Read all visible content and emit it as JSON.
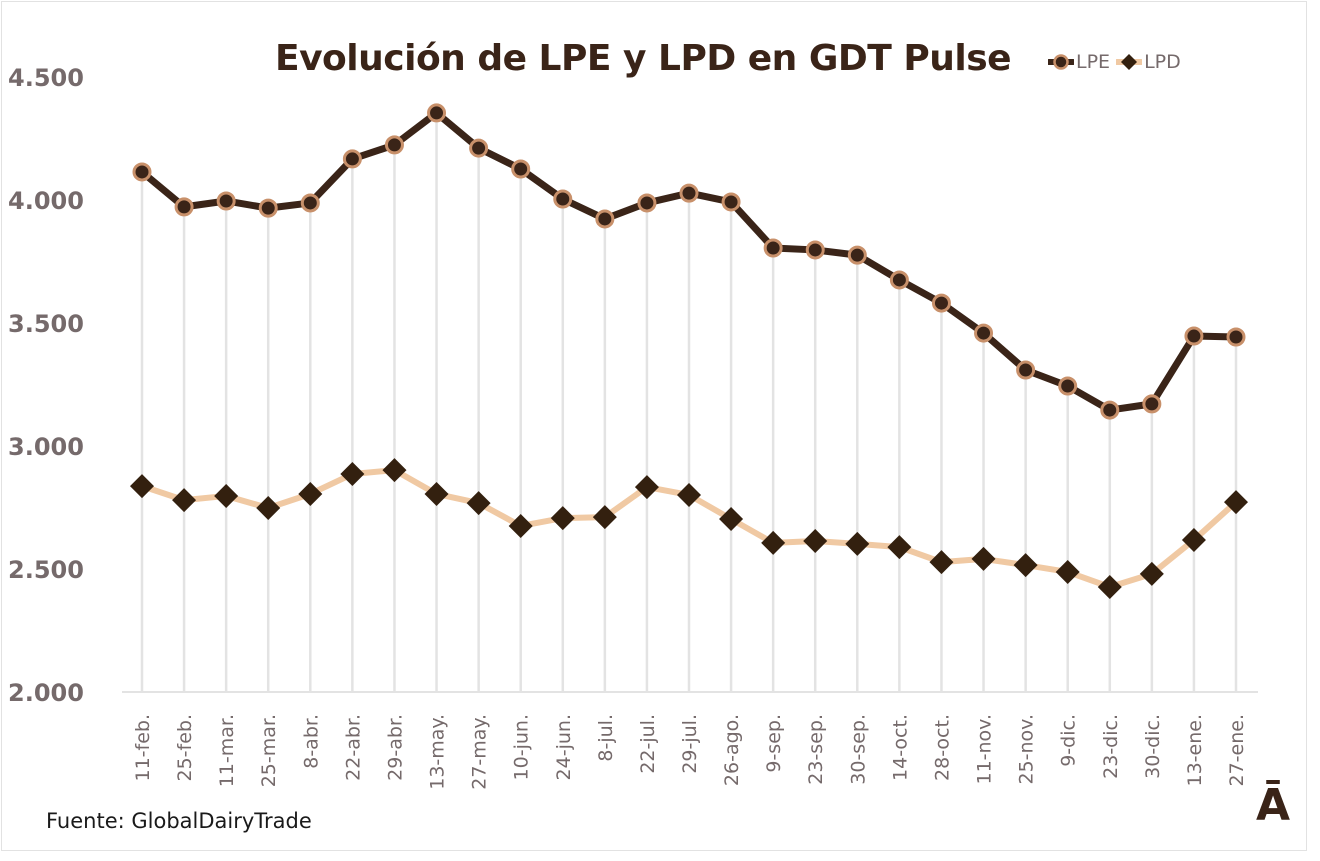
{
  "chart_data": {
    "type": "line",
    "title": "Evolución de LPE y LPD en GDT Pulse",
    "xlabel": "",
    "ylabel": "",
    "ylim": [
      2000,
      4500
    ],
    "yticks": [
      2000,
      2500,
      3000,
      3500,
      4000,
      4500
    ],
    "ytick_labels": [
      "2.000",
      "2.500",
      "3.000",
      "3.500",
      "4.000",
      "4.500"
    ],
    "grid": "vertical drop lines",
    "legend_position": "top-right",
    "categories": [
      "11-feb.",
      "25-feb.",
      "11-mar.",
      "25-mar.",
      "8-abr.",
      "22-abr.",
      "29-abr.",
      "13-may.",
      "27-may.",
      "10-jun.",
      "24-jun.",
      "8-jul.",
      "22-jul.",
      "29-jul.",
      "26-ago.",
      "9-sep.",
      "23-sep.",
      "30-sep.",
      "14-oct.",
      "28-oct.",
      "11-nov.",
      "25-nov.",
      "9-dic.",
      "23-dic.",
      "30-dic.",
      "13-ene.",
      "27-ene."
    ],
    "series": [
      {
        "name": "LPE",
        "line_color": "#3a2418",
        "marker": "circle",
        "marker_color": "#c8906a",
        "values": [
          4114,
          3972,
          3996,
          3967,
          3988,
          4167,
          4224,
          4354,
          4211,
          4126,
          4004,
          3923,
          3988,
          4028,
          3992,
          3805,
          3797,
          3776,
          3675,
          3581,
          3459,
          3309,
          3244,
          3146,
          3171,
          3447,
          3443
        ]
      },
      {
        "name": "LPD",
        "line_color": "#f0c9a3",
        "marker": "diamond",
        "marker_color": "#33200f",
        "values": [
          2837,
          2780,
          2797,
          2748,
          2805,
          2886,
          2902,
          2805,
          2768,
          2675,
          2707,
          2711,
          2833,
          2801,
          2703,
          2606,
          2614,
          2602,
          2589,
          2528,
          2541,
          2516,
          2488,
          2427,
          2480,
          2618,
          2772
        ]
      }
    ]
  },
  "labels": {
    "source": "Fuente: GlobalDairyTrade",
    "logo": "Ā"
  }
}
